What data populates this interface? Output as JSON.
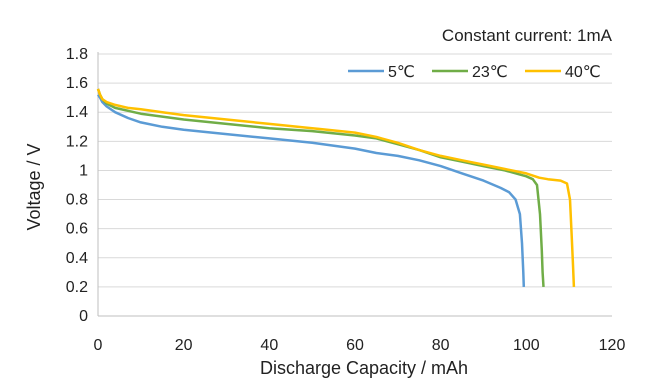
{
  "chart_data": {
    "type": "line",
    "title": "",
    "annotation": "Constant current: 1mA",
    "xlabel": "Discharge Capacity / mAh",
    "ylabel": "Voltage / V",
    "xlim": [
      0,
      120
    ],
    "ylim": [
      0,
      1.8
    ],
    "xticks": [
      0,
      20,
      40,
      60,
      80,
      100,
      120
    ],
    "yticks": [
      0,
      0.2,
      0.4,
      0.6,
      0.8,
      1,
      1.2,
      1.4,
      1.6,
      1.8
    ],
    "grid": "horizontal",
    "legend_position": "top-right",
    "series": [
      {
        "name": "5℃",
        "color": "#5b9bd5",
        "x": [
          0,
          0.5,
          1,
          2,
          4,
          7,
          10,
          15,
          20,
          30,
          40,
          50,
          60,
          65,
          70,
          75,
          80,
          85,
          90,
          94,
          96,
          97.5,
          98.5,
          99,
          99.3,
          99.4
        ],
        "y": [
          1.52,
          1.5,
          1.47,
          1.44,
          1.4,
          1.36,
          1.33,
          1.3,
          1.28,
          1.25,
          1.22,
          1.19,
          1.15,
          1.12,
          1.1,
          1.07,
          1.03,
          0.98,
          0.93,
          0.88,
          0.85,
          0.8,
          0.7,
          0.5,
          0.3,
          0.2
        ]
      },
      {
        "name": "23℃",
        "color": "#70ad47",
        "x": [
          0,
          0.5,
          1,
          2,
          4,
          7,
          10,
          15,
          20,
          30,
          40,
          50,
          60,
          65,
          70,
          75,
          80,
          85,
          90,
          95,
          100,
          101.5,
          102.5,
          103.2,
          103.6,
          103.8,
          104
        ],
        "y": [
          1.56,
          1.52,
          1.49,
          1.46,
          1.43,
          1.41,
          1.39,
          1.37,
          1.35,
          1.32,
          1.29,
          1.27,
          1.24,
          1.22,
          1.18,
          1.14,
          1.09,
          1.06,
          1.03,
          1.0,
          0.96,
          0.94,
          0.9,
          0.7,
          0.45,
          0.3,
          0.2
        ]
      },
      {
        "name": "40℃",
        "color": "#ffc000",
        "x": [
          0,
          0.5,
          1,
          2,
          4,
          7,
          10,
          15,
          20,
          30,
          40,
          50,
          60,
          65,
          70,
          75,
          80,
          85,
          90,
          95,
          100,
          103,
          105,
          108,
          109.5,
          110.2,
          110.6,
          110.9,
          111.1
        ],
        "y": [
          1.56,
          1.52,
          1.49,
          1.47,
          1.45,
          1.43,
          1.42,
          1.4,
          1.38,
          1.35,
          1.32,
          1.29,
          1.26,
          1.23,
          1.19,
          1.14,
          1.1,
          1.07,
          1.04,
          1.01,
          0.98,
          0.95,
          0.94,
          0.93,
          0.91,
          0.8,
          0.55,
          0.35,
          0.2
        ]
      }
    ]
  }
}
